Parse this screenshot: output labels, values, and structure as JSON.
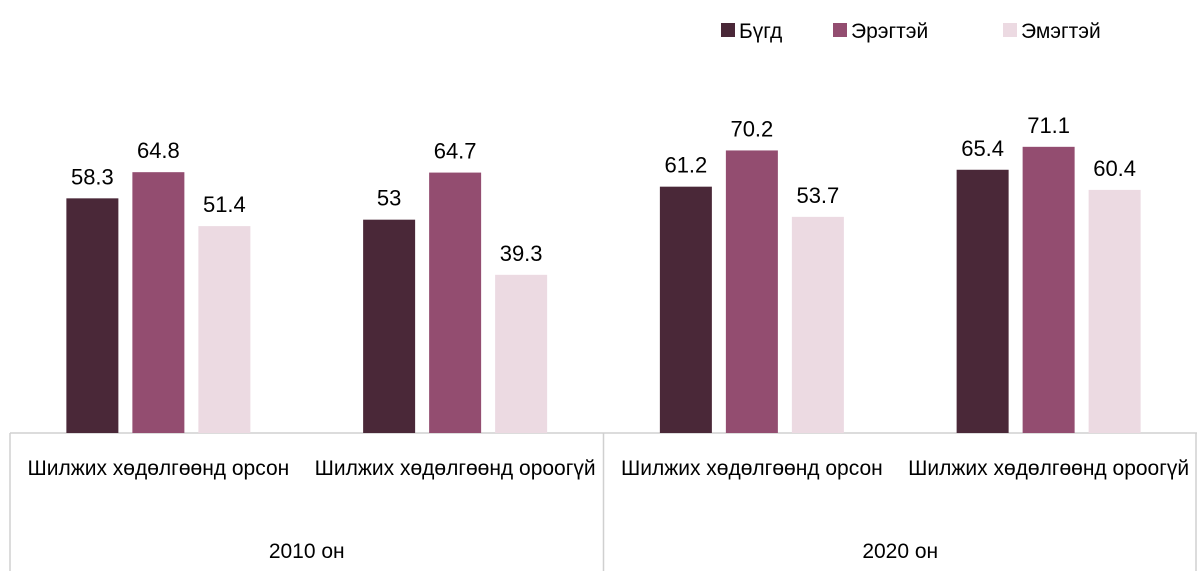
{
  "chart_data": {
    "type": "bar",
    "groups": [
      {
        "label": "2010 он",
        "categories": [
          "Шилжих хөдөлгөөнд орсон",
          "Шилжих хөдөлгөөнд ороогүй"
        ]
      },
      {
        "label": "2020 он",
        "categories": [
          "Шилжих хөдөлгөөнд орсон",
          "Шилжих хөдөлгөөнд ороогүй"
        ]
      }
    ],
    "series": [
      {
        "name": "Бүгд",
        "color": "#4a2838",
        "values": [
          58.3,
          53,
          61.2,
          65.4
        ]
      },
      {
        "name": "Эрэгтэй",
        "color": "#934d70",
        "values": [
          64.8,
          64.7,
          70.2,
          71.1
        ]
      },
      {
        "name": "Эмэгтэй",
        "color": "#ecdae2",
        "values": [
          51.4,
          39.3,
          53.7,
          60.4
        ]
      }
    ],
    "ylim": [
      0,
      80
    ],
    "legend": "top-right"
  }
}
